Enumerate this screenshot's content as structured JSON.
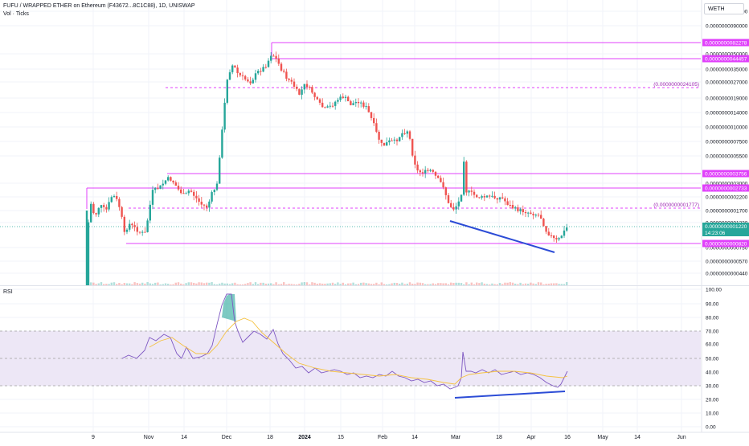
{
  "header": {
    "title": "FUFU / WRAPPED ETHER on Ethereum (F43672...8C1C88), 1D, UNISWAP",
    "subtitle": "Vol · Ticks",
    "currency": "WETH"
  },
  "rsi_pane": {
    "label": "RSI"
  },
  "colors": {
    "up": "#26a69a",
    "down": "#ef5350",
    "magenta": "#e040fb",
    "rsi_line": "#7e57c2",
    "rsi_ma": "#f5c242",
    "trendline": "#2c4cd6",
    "rsi_band": "#ede7f6",
    "rsi_level_line": "#9e9e9e",
    "price_label_bg": "#26a69a"
  },
  "price_axis": {
    "ticks": [
      "0.0000000120000",
      "0.0000000090000",
      "0.0000000050000",
      "0.0000000035000",
      "0.0000000027000",
      "0.0000000019000",
      "0.0000000014000",
      "0.0000000010000",
      "0.0000000007500",
      "0.0000000005500",
      "0.0000000003000",
      "0.0000000002200",
      "0.0000000001700",
      "0.0000000001220",
      "0.0000000000750",
      "0.0000000000570",
      "0.0000000000440"
    ]
  },
  "price_lines": [
    {
      "label": "0.0000000082278",
      "style": "solid"
    },
    {
      "label": "0.0000000044457",
      "style": "solid"
    },
    {
      "label": "(0.0000000024105)",
      "style": "dashed"
    },
    {
      "label": "0.0000000003756",
      "style": "solid"
    },
    {
      "label": "0.0000000002733",
      "style": "solid"
    },
    {
      "label": "(0.0000000001777)",
      "style": "dashed"
    },
    {
      "label": "0.0000000000820",
      "style": "solid"
    }
  ],
  "current_price": {
    "value": "0.0000000001220",
    "countdown": "14:23:06"
  },
  "rsi_axis": {
    "ticks": [
      "100.00",
      "90.00",
      "80.00",
      "70.00",
      "60.00",
      "50.00",
      "40.00",
      "30.00",
      "20.00",
      "10.00",
      "0.00"
    ]
  },
  "time_axis": {
    "labels": [
      "9",
      "Nov",
      "14",
      "Dec",
      "18",
      "2024",
      "15",
      "Feb",
      "14",
      "Mar",
      "18",
      "Apr",
      "16",
      "May",
      "14",
      "Jun"
    ]
  }
}
